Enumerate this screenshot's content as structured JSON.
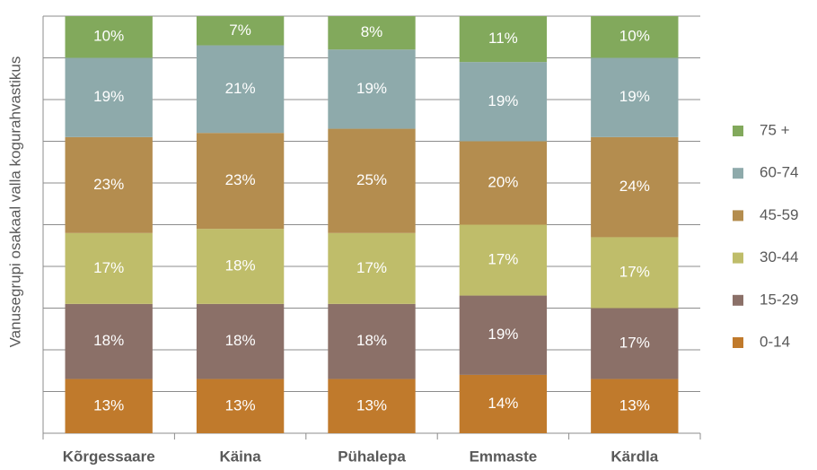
{
  "chart_data": {
    "type": "stacked_bar",
    "y_label": "Vanusegrupi osakaal valla kogurahvastikus",
    "categories": [
      "Kõrgessaare",
      "Käina",
      "Pühalepa",
      "Emmaste",
      "Kärdla"
    ],
    "series": [
      {
        "name": "0-14",
        "color": "#c07a2c",
        "values": [
          13,
          13,
          13,
          14,
          13
        ],
        "value_labels": [
          "13%",
          "13%",
          "13%",
          "14%",
          "13%"
        ]
      },
      {
        "name": "15-29",
        "color": "#8b7068",
        "values": [
          18,
          18,
          18,
          19,
          17
        ],
        "value_labels": [
          "18%",
          "18%",
          "18%",
          "19%",
          "17%"
        ]
      },
      {
        "name": "30-44",
        "color": "#bfbd6a",
        "values": [
          17,
          18,
          17,
          17,
          17
        ],
        "value_labels": [
          "17%",
          "18%",
          "17%",
          "17%",
          "17%"
        ]
      },
      {
        "name": "45-59",
        "color": "#b48d4f",
        "values": [
          23,
          23,
          25,
          20,
          24
        ],
        "value_labels": [
          "23%",
          "23%",
          "25%",
          "20%",
          "24%"
        ]
      },
      {
        "name": "60-74",
        "color": "#8eaaab",
        "values": [
          19,
          21,
          19,
          19,
          19
        ],
        "value_labels": [
          "19%",
          "21%",
          "19%",
          "19%",
          "19%"
        ]
      },
      {
        "name": "75 +",
        "color": "#82a95c",
        "values": [
          10,
          7,
          8,
          11,
          10
        ],
        "value_labels": [
          "10%",
          "7%",
          "8%",
          "11%",
          "10%"
        ]
      }
    ],
    "ylim": [
      0,
      100
    ],
    "yticks": [
      0,
      10,
      20,
      30,
      40,
      50,
      60,
      70,
      80,
      90,
      100
    ],
    "grid": true,
    "legend": "right"
  }
}
